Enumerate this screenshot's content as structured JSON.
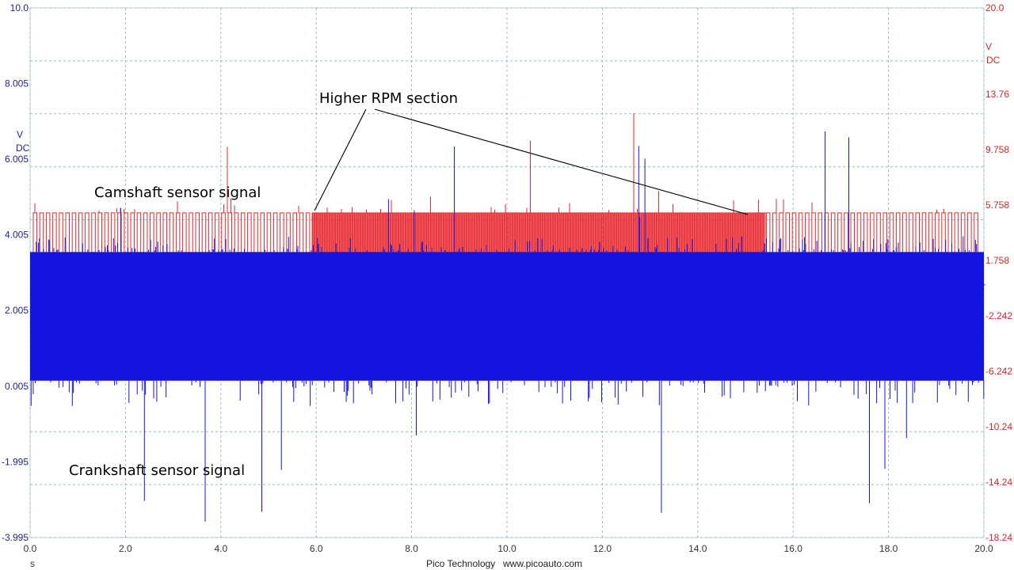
{
  "chart_data": {
    "type": "line",
    "title": "",
    "x_axis": {
      "unit": "s",
      "range": [
        0,
        20
      ],
      "ticks": [
        "0.0",
        "2.0",
        "4.0",
        "6.0",
        "8.0",
        "10.0",
        "12.0",
        "14.0",
        "16.0",
        "18.0",
        "20.0"
      ]
    },
    "left_axis": {
      "unit_line1": "V",
      "unit_line2": "DC",
      "range": [
        -3.995,
        10.0
      ],
      "tick_values": [
        10.0,
        8.005,
        6.005,
        4.005,
        2.005,
        0.005,
        -1.995,
        -3.995
      ],
      "ticks": [
        "10.0",
        "8.005",
        "6.005",
        "4.005",
        "2.005",
        "0.005",
        "-1.995",
        "-3.995"
      ]
    },
    "right_axis": {
      "unit_line1": "V",
      "unit_line2": "DC",
      "range": [
        -18.24,
        20.0
      ],
      "tick_values": [
        20.0,
        13.76,
        9.758,
        5.758,
        1.758,
        -2.242,
        -6.242,
        -10.24,
        -14.24,
        -18.24
      ],
      "ticks": [
        "20.0",
        "13.76",
        "9.758",
        "5.758",
        "1.758",
        "—",
        "-2.242",
        "-6.242",
        "-10.24",
        "-14.24",
        "-18.24"
      ]
    },
    "series": [
      {
        "name": "Camshaft sensor signal",
        "axis": "right",
        "color": "#e8282e",
        "description": "square wave",
        "low": 1.2,
        "high": 5.2,
        "dense_section_s": [
          5.9,
          15.4
        ]
      },
      {
        "name": "Crankshaft sensor signal",
        "axis": "left",
        "color": "#1414e0",
        "description": "dense pulse train",
        "low": 0.15,
        "high": 3.55
      }
    ],
    "annotations": [
      {
        "text": "Higher RPM section",
        "targets_s": [
          5.95,
          15.1
        ]
      },
      {
        "text": "Camshaft sensor signal"
      },
      {
        "text": "Crankshaft sensor signal"
      }
    ]
  },
  "footer": {
    "brand": "Pico Technology",
    "url": "www.picoauto.com"
  },
  "colors": {
    "grid": "#9bbcc0",
    "cam": "#e8282e",
    "crank": "#1414e0",
    "left_axis": "#1f1fa0",
    "right_axis": "#d42a2a"
  }
}
